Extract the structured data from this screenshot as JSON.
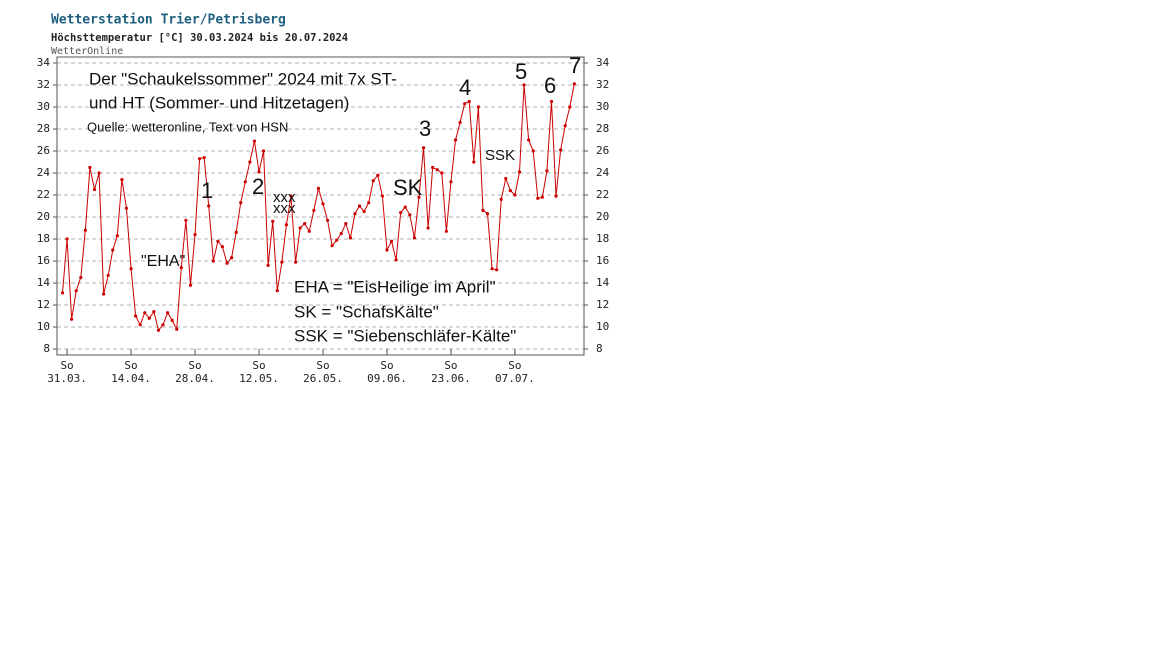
{
  "chart_data": {
    "type": "line",
    "title": "Wetterstation Trier/Petrisberg",
    "subtitle": "Höchsttemperatur [°C] 30.03.2024 bis 20.07.2024",
    "source": "WetterOnline",
    "weekday": "So",
    "categories": [
      null,
      "31.03.",
      null,
      null,
      null,
      null,
      null,
      null,
      null,
      null,
      null,
      null,
      null,
      null,
      null,
      "14.04.",
      null,
      null,
      null,
      null,
      null,
      null,
      null,
      null,
      null,
      null,
      null,
      null,
      null,
      "28.04.",
      null,
      null,
      null,
      null,
      null,
      null,
      null,
      null,
      null,
      null,
      null,
      null,
      null,
      "12.05.",
      null,
      null,
      null,
      null,
      null,
      null,
      null,
      null,
      null,
      null,
      null,
      null,
      null,
      "26.05.",
      null,
      null,
      null,
      null,
      null,
      null,
      null,
      null,
      null,
      null,
      null,
      null,
      null,
      "09.06.",
      null,
      null,
      null,
      null,
      null,
      null,
      null,
      null,
      null,
      null,
      null,
      null,
      null,
      "23.06.",
      null,
      null,
      null,
      null,
      null,
      null,
      null,
      null,
      null,
      null,
      null,
      null,
      null,
      "07.07.",
      null,
      null,
      null,
      null,
      null,
      null,
      null,
      null,
      null,
      null,
      null,
      null,
      null
    ],
    "series": [
      {
        "name": "Höchsttemperatur",
        "color": "#cc0000",
        "values": [
          13.1,
          18,
          10.7,
          13.3,
          14.5,
          18.8,
          24.5,
          22.5,
          24,
          13,
          14.7,
          17,
          18.3,
          23.4,
          20.8,
          15.3,
          11,
          10.2,
          11.3,
          10.8,
          11.4,
          9.7,
          10.2,
          11.3,
          10.6,
          9.8,
          15.4,
          19.7,
          13.8,
          18.4,
          25.3,
          25.4,
          21,
          16,
          17.8,
          17.3,
          15.8,
          16.3,
          18.6,
          21.3,
          23.2,
          25,
          26.9,
          24.1,
          26,
          15.6,
          19.6,
          13.3,
          15.9,
          19.3,
          21.9,
          15.9,
          19,
          19.4,
          18.7,
          20.6,
          22.6,
          21.2,
          19.7,
          17.4,
          17.9,
          18.5,
          19.4,
          18.1,
          20.3,
          21,
          20.5,
          21.3,
          23.3,
          23.8,
          21.9,
          17,
          17.8,
          16.1,
          20.4,
          20.9,
          20.2,
          18.1,
          21.8,
          26.3,
          19,
          24.5,
          24.3,
          24,
          18.7,
          23.2,
          27,
          28.6,
          30.3,
          30.5,
          25,
          30,
          20.6,
          20.3,
          15.3,
          15.2,
          21.6,
          23.5,
          22.4,
          22,
          24.1,
          32,
          27,
          26,
          21.7,
          21.8,
          24.2,
          30.5,
          21.9,
          26.1,
          28.3,
          30,
          32.1
        ]
      }
    ],
    "ylim": [
      8,
      34
    ],
    "yticks": [
      8,
      10,
      12,
      14,
      16,
      18,
      20,
      22,
      24,
      26,
      28,
      30,
      32,
      34
    ],
    "grid": true,
    "annotations": [
      "Der \"Schaukelssommer\" 2024 mit 7x ST-",
      "und HT (Sommer- und Hitzetagen)",
      "Quelle: wetteronline, Text von HSN",
      "\"EHA\"",
      "1",
      "2",
      "xxx",
      "xxx",
      "SK",
      "3",
      "4",
      "SSK",
      "5",
      "6",
      "7",
      "EHA = \"EisHeilige im April\"",
      "SK = \"SchafsKälte\"",
      "SSK = \"Siebenschläfer-Kälte\""
    ]
  }
}
